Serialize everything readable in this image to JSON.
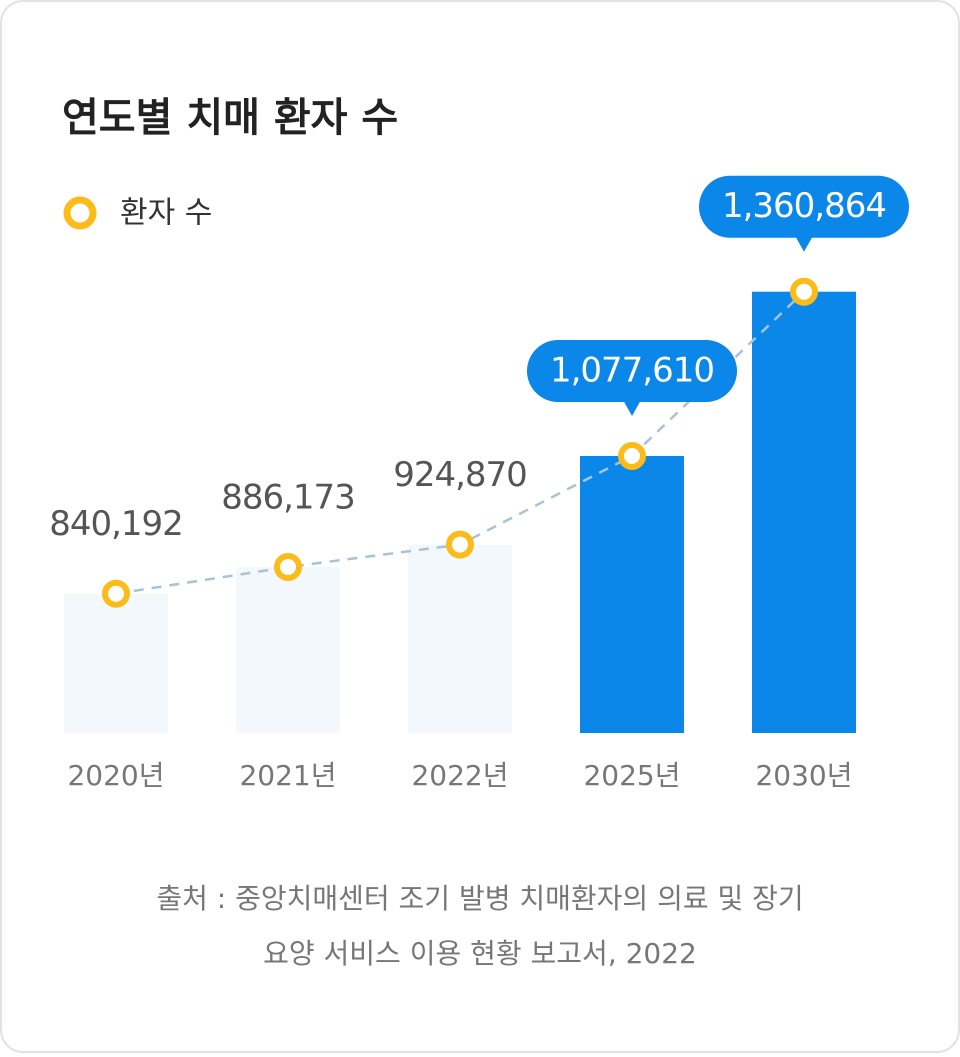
{
  "chart_data": {
    "type": "bar_line",
    "title": "연도별 치매 환자 수",
    "categories": [
      "2020년",
      "2021년",
      "2022년",
      "2025년",
      "2030년"
    ],
    "series": [
      {
        "name": "환자 수",
        "color": "#fbbc1a",
        "values": [
          840192,
          886173,
          924870,
          1077610,
          1360864
        ],
        "value_labels": [
          "840,192",
          "886,173",
          "924,870",
          "1,077,610",
          "1,360,864"
        ]
      }
    ],
    "bar_colors": [
      "#f3f8fd",
      "#f3f8fd",
      "#f3f8fd",
      "#0a87e8",
      "#0a87e8"
    ],
    "highlighted": [
      false,
      false,
      false,
      true,
      true
    ],
    "ylim": [
      600000,
      1450000
    ],
    "source": [
      "출처 : 중앙치매센터 조기 발병 치매환자의 의료 및 장기",
      "요양 서비스 이용 현황 보고서, 2022"
    ]
  }
}
